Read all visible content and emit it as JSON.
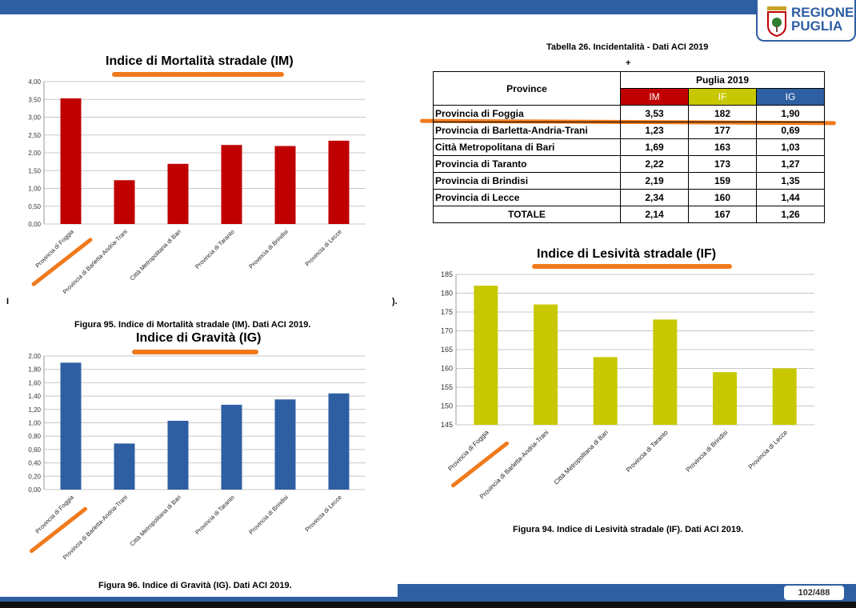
{
  "header": {
    "logo_line1": "REGIONE",
    "logo_line2": "PUGLIA"
  },
  "footer": {
    "page": "102/488"
  },
  "stray_marks": [
    "I",
    ")."
  ],
  "colors": {
    "brand": "#2e5fa3",
    "im": "#c00000",
    "if": "#c8c800",
    "ig": "#2e5fa3",
    "highlight": "#f07a1c"
  },
  "table": {
    "title": "Tabella 26. Incidentalità - Dati ACI 2019",
    "plus": "+",
    "col_province": "Province",
    "group_header": "Puglia 2019",
    "headers": [
      "IM",
      "IF",
      "IG"
    ],
    "rows": [
      {
        "name": "Provincia di Foggia",
        "im": "3,53",
        "if": "182",
        "ig": "1,90"
      },
      {
        "name": "Provincia di Barletta-Andria-Trani",
        "im": "1,23",
        "if": "177",
        "ig": "0,69"
      },
      {
        "name": "Città Metropolitana di Bari",
        "im": "1,69",
        "if": "163",
        "ig": "1,03"
      },
      {
        "name": "Provincia di Taranto",
        "im": "2,22",
        "if": "173",
        "ig": "1,27"
      },
      {
        "name": "Provincia di Brindisi",
        "im": "2,19",
        "if": "159",
        "ig": "1,35"
      },
      {
        "name": "Provincia di Lecce",
        "im": "2,34",
        "if": "160",
        "ig": "1,44"
      }
    ],
    "total": {
      "name": "TOTALE",
      "im": "2,14",
      "if": "167",
      "ig": "1,26"
    }
  },
  "chart_data": [
    {
      "id": "im",
      "type": "bar",
      "title": "Indice di Mortalità stradale (IM)",
      "caption": "Figura 95. Indice di Mortalità stradale (IM). Dati ACI 2019.",
      "categories": [
        "Provincia di Foggia",
        "Provincia di Barletta-Andria-Trani",
        "Città Metropolitana di Bari",
        "Provincia di Taranto",
        "Provincia di Brindisi",
        "Provincia di Lecce"
      ],
      "values": [
        3.53,
        1.23,
        1.69,
        2.22,
        2.19,
        2.34
      ],
      "ylim": [
        0,
        4
      ],
      "yticks": [
        "0,00",
        "0,50",
        "1,00",
        "1,50",
        "2,00",
        "2,50",
        "3,00",
        "3,50",
        "4,00"
      ],
      "grid": true,
      "color": "#c00000"
    },
    {
      "id": "ig",
      "type": "bar",
      "title": "Indice di Gravità (IG)",
      "caption": "Figura 96. Indice di Gravità (IG). Dati ACI 2019.",
      "categories": [
        "Provincia di Foggia",
        "Provincia di Barletta-Andria-Trani",
        "Città Metropolitana di Bari",
        "Provincia di Taranto",
        "Provincia di Brindisi",
        "Provincia di Lecce"
      ],
      "values": [
        1.9,
        0.69,
        1.03,
        1.27,
        1.35,
        1.44
      ],
      "ylim": [
        0,
        2
      ],
      "yticks": [
        "0,00",
        "0,20",
        "0,40",
        "0,60",
        "0,80",
        "1,00",
        "1,20",
        "1,40",
        "1,60",
        "1,80",
        "2,00"
      ],
      "grid": true,
      "color": "#2e5fa3"
    },
    {
      "id": "if",
      "type": "bar",
      "title": "Indice di Lesività stradale (IF)",
      "caption": "Figura 94. Indice di Lesività stradale (IF). Dati ACI 2019.",
      "categories": [
        "Provincia di Foggia",
        "Provincia di Barletta-Andria-Trani",
        "Città Metropolitana di Bari",
        "Provincia di Taranto",
        "Provincia di Brindisi",
        "Provincia di Lecce"
      ],
      "values": [
        182,
        177,
        163,
        173,
        159,
        160
      ],
      "ylim": [
        145,
        185
      ],
      "yticks": [
        "145",
        "150",
        "155",
        "160",
        "165",
        "170",
        "175",
        "180",
        "185"
      ],
      "grid": true,
      "color": "#c8c800"
    }
  ]
}
